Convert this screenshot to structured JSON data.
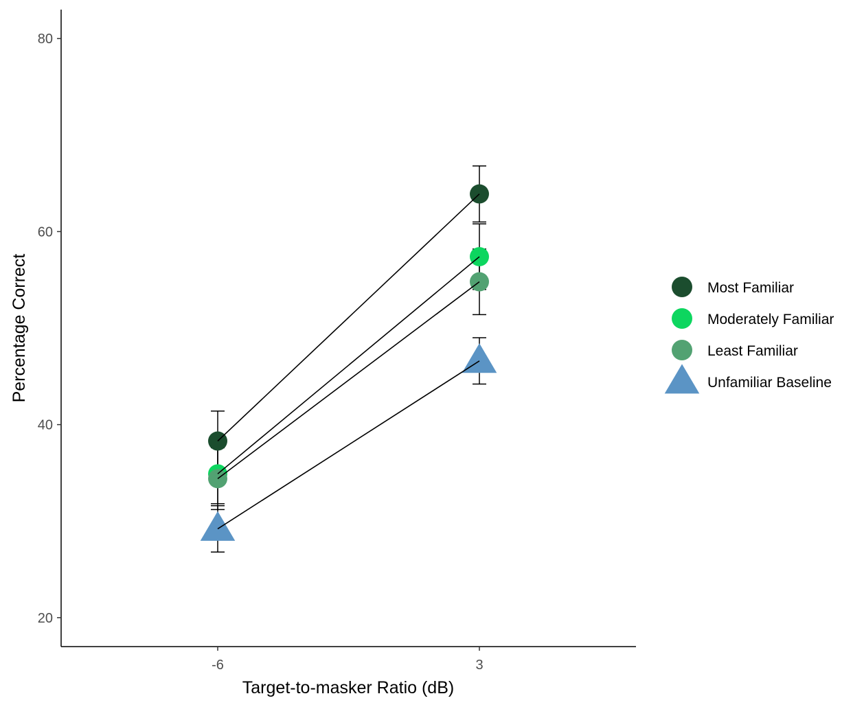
{
  "chart_data": {
    "type": "line",
    "title": "",
    "xlabel": "Target-to-masker Ratio (dB)",
    "ylabel": "Percentage Correct",
    "categories": [
      "-6",
      "3"
    ],
    "ylim": [
      17,
      83
    ],
    "yticks": [
      20,
      40,
      60,
      80
    ],
    "y_tick_labels": [
      "20",
      "40",
      "60",
      "80"
    ],
    "grid": false,
    "legend_position": "right",
    "series": [
      {
        "name": "Most Familiar",
        "values": [
          38.3,
          63.9
        ],
        "error": [
          3.1,
          2.9
        ],
        "color": "#1b4d2e",
        "marker": "circle"
      },
      {
        "name": "Moderately Familiar",
        "values": [
          34.9,
          57.4
        ],
        "error": [
          3.1,
          3.4
        ],
        "color": "#0dd65f",
        "marker": "circle"
      },
      {
        "name": "Least Familiar",
        "values": [
          34.4,
          54.8
        ],
        "error": [
          3.2,
          3.4
        ],
        "color": "#52a272",
        "marker": "circle"
      },
      {
        "name": "Unfamiliar Baseline",
        "values": [
          29.2,
          46.6
        ],
        "error": [
          2.4,
          2.4
        ],
        "color": "#5b94c5",
        "marker": "triangle"
      }
    ]
  }
}
